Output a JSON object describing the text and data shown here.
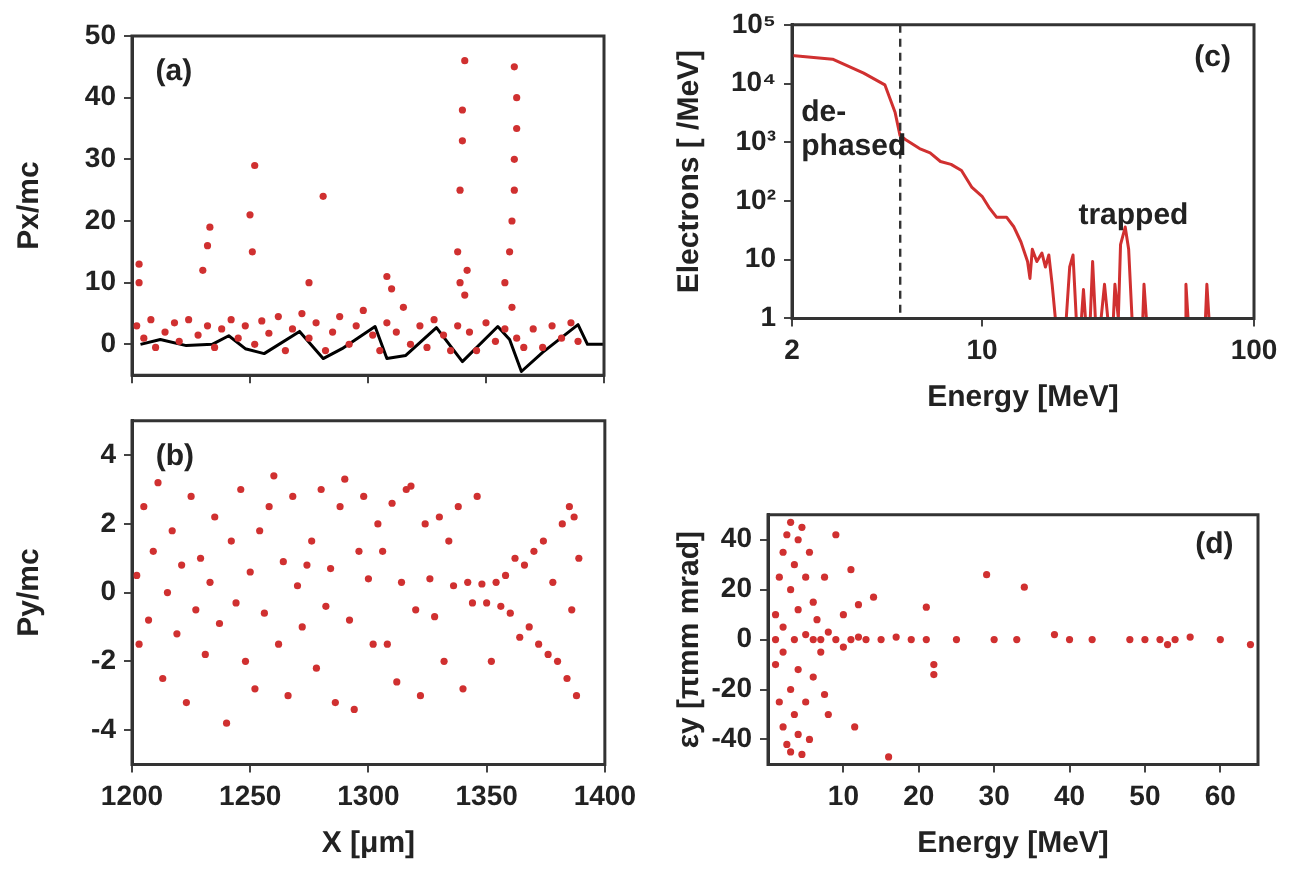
{
  "chart_data": [
    {
      "type": "scatter",
      "ylabel": "Px/mc",
      "xlim": [
        1200,
        1400
      ],
      "xticks": [
        1200,
        1250,
        1300,
        1350,
        1400
      ],
      "ylim": [
        -5,
        50
      ],
      "yticks": [
        0,
        10,
        20,
        30,
        40,
        50
      ],
      "tick_labels": "y",
      "annotations": [
        "(a)"
      ],
      "series": [
        {
          "type": "scatter",
          "color": "#d03030",
          "x": [
            1202,
            1205,
            1208,
            1210,
            1214,
            1218,
            1220,
            1224,
            1228,
            1232,
            1235,
            1238,
            1242,
            1245,
            1248,
            1252,
            1255,
            1258,
            1262,
            1265,
            1268,
            1272,
            1275,
            1278,
            1282,
            1285,
            1288,
            1292,
            1295,
            1298,
            1302,
            1305,
            1308,
            1312,
            1315,
            1318,
            1322,
            1325,
            1328,
            1332,
            1335,
            1338,
            1341,
            1343,
            1346,
            1350,
            1354,
            1358,
            1361,
            1363,
            1366,
            1370,
            1374,
            1378,
            1382,
            1386,
            1389,
            1203,
            1203,
            1230,
            1233,
            1232,
            1252,
            1250,
            1251,
            1281,
            1275,
            1310,
            1308,
            1338,
            1339,
            1340,
            1340,
            1341,
            1342,
            1339,
            1361,
            1362,
            1362,
            1363,
            1363,
            1362,
            1360,
            1358
          ],
          "values": [
            3,
            1,
            4,
            -0.5,
            2,
            3.5,
            0.5,
            4,
            1.5,
            3,
            -0.5,
            2.5,
            4,
            1,
            3,
            0,
            3.8,
            1.8,
            4.5,
            -1,
            2.5,
            5,
            1,
            3.5,
            -1,
            2,
            4.5,
            0,
            3,
            5.5,
            1.5,
            -1,
            3.5,
            2,
            6,
            0,
            3,
            -0.5,
            4,
            1.5,
            -1,
            3,
            8,
            2,
            -1,
            3.5,
            0.5,
            2.5,
            6,
            1,
            -0.5,
            2.5,
            -0.5,
            3,
            1,
            3.5,
            0.5,
            13,
            10,
            12,
            19,
            16,
            29,
            21,
            15,
            24,
            10,
            9,
            11,
            15,
            25,
            33,
            38,
            46,
            12,
            10,
            20,
            25,
            30,
            35,
            40,
            45,
            15,
            10
          ]
        },
        {
          "type": "line",
          "color": "#000000",
          "x": [
            1203.6,
            1212,
            1223,
            1234,
            1241,
            1248,
            1256,
            1271,
            1281,
            1289,
            1303,
            1308,
            1316,
            1329,
            1340,
            1355,
            1360,
            1365,
            1374,
            1389,
            1393,
            1400
          ],
          "values": [
            0,
            0.8,
            -0.2,
            0,
            1.4,
            -0.7,
            -1.5,
            2.1,
            -2.3,
            -0.7,
            2.9,
            -2.3,
            -1.8,
            2.7,
            -2.8,
            2.9,
            0.8,
            -4.4,
            -1.3,
            3.2,
            0,
            0
          ]
        }
      ]
    },
    {
      "type": "scatter",
      "ylabel": "Py/mc",
      "xlabel": "X [μm]",
      "xlim": [
        1200,
        1400
      ],
      "xticks": [
        1200,
        1250,
        1300,
        1350,
        1400
      ],
      "ylim": [
        -5,
        5
      ],
      "yticks": [
        -4,
        -2,
        0,
        2,
        4
      ],
      "annotations": [
        "(b)"
      ],
      "series": [
        {
          "type": "scatter",
          "color": "#d03030",
          "x": [
            1202,
            1203,
            1205,
            1207,
            1209,
            1211,
            1213,
            1215,
            1217,
            1219,
            1221,
            1223,
            1225,
            1227,
            1229,
            1231,
            1233,
            1235,
            1237,
            1240,
            1242,
            1244,
            1246,
            1248,
            1250,
            1252,
            1254,
            1256,
            1258,
            1260,
            1262,
            1264,
            1266,
            1268,
            1270,
            1272,
            1274,
            1276,
            1278,
            1280,
            1282,
            1284,
            1286,
            1288,
            1290,
            1292,
            1294,
            1296,
            1298,
            1300,
            1302,
            1304,
            1306,
            1308,
            1310,
            1312,
            1314,
            1316,
            1318,
            1320,
            1322,
            1324,
            1326,
            1328,
            1330,
            1332,
            1334,
            1336,
            1338,
            1340,
            1342,
            1344,
            1346,
            1348,
            1350,
            1352,
            1354,
            1356,
            1358,
            1360,
            1362,
            1364,
            1366,
            1368,
            1370,
            1372,
            1374,
            1376,
            1378,
            1380,
            1382,
            1384,
            1385,
            1386,
            1387,
            1388,
            1389
          ],
          "values": [
            0.5,
            -1.5,
            2.5,
            -0.8,
            1.2,
            3.2,
            -2.5,
            0,
            1.8,
            -1.2,
            0.8,
            -3.2,
            2.8,
            -0.5,
            1,
            -1.8,
            0.3,
            2.2,
            -0.9,
            -3.8,
            1.5,
            -0.3,
            3,
            -2,
            0.6,
            -2.8,
            1.8,
            -0.6,
            2.5,
            3.4,
            -1.5,
            0.9,
            -3,
            2.8,
            0.2,
            -1,
            0.8,
            1.5,
            -2.2,
            3,
            -0.4,
            0.7,
            -3.2,
            2.5,
            3.3,
            -0.8,
            -3.4,
            1.2,
            2.8,
            0.4,
            -1.5,
            2,
            1.2,
            -1.5,
            2.6,
            -2.6,
            0.3,
            3,
            3.1,
            -0.5,
            -3,
            2,
            0.4,
            -0.7,
            2.2,
            -2,
            1.5,
            0.2,
            2.5,
            -2.8,
            0.3,
            -0.3,
            2.8,
            0.25,
            -0.3,
            -2,
            0.3,
            -0.4,
            0.5,
            -0.6,
            1,
            -1.3,
            0.8,
            -1,
            1.2,
            -1.5,
            1.5,
            -1.8,
            0.3,
            -2,
            2,
            -2.5,
            2.5,
            -0.5,
            2.2,
            -3,
            1
          ]
        }
      ]
    },
    {
      "type": "line",
      "ylabel": "Electrons [ /MeV]",
      "xlabel": "Energy [MeV]",
      "log": "xy",
      "xlim": [
        2,
        100
      ],
      "xticks": [
        2,
        10,
        100
      ],
      "ylim": [
        1,
        100000
      ],
      "yticks": [
        1,
        10,
        {
          "value": 100,
          "label": "10²"
        },
        {
          "value": 1000,
          "label": "10³"
        },
        {
          "value": 10000,
          "label": "10⁴"
        },
        {
          "value": 100000,
          "label": "10⁵"
        }
      ],
      "ref_lines": [
        {
          "axis": "x",
          "value": 5,
          "color": "#333333",
          "line_style": "dashed"
        }
      ],
      "annotations": [
        "(c)",
        "de-\nphased",
        "trapped"
      ],
      "series": [
        {
          "color": "#d03030",
          "x": [
            2,
            2.82,
            3.67,
            4.39,
            4.79,
            4.99,
            5.24,
            5.89,
            6.44,
            7.03,
            7.69,
            8.4,
            9.18,
            10,
            10.6,
            11.3,
            12.3,
            13.1,
            13.9,
            14.7,
            15,
            15.3,
            15.9,
            16.6,
            17.1,
            17.6,
            18.1,
            18.6,
            20.4,
            21,
            21.6,
            22.2,
            23.2,
            23.6,
            24,
            25,
            25.5,
            26.1,
            27.4,
            28.2,
            29,
            30.4,
            30.8,
            31.7,
            32.3,
            33.6,
            34.6,
            35.6,
            39,
            39.4,
            40.2,
            55.6,
            56.2,
            57.2,
            66.3,
            67.1,
            68.3
          ],
          "values": [
            30000,
            26000,
            15000,
            9500,
            3200,
            1300,
            1100,
            780,
            660,
            470,
            420,
            330,
            170,
            120,
            78,
            53,
            53,
            36,
            20,
            9.3,
            4.8,
            15,
            9.3,
            13,
            7.5,
            12,
            3.8,
            1,
            1,
            7.5,
            12,
            1,
            1,
            3.1,
            1,
            1,
            9.3,
            1,
            1,
            3.8,
            1,
            1,
            3.8,
            1,
            18,
            36,
            15,
            1,
            1,
            3.8,
            1,
            1,
            3.8,
            1,
            1,
            3.8,
            1
          ]
        }
      ]
    },
    {
      "type": "scatter",
      "ylabel": "εy [πmm mrad]",
      "xlabel": "Energy [MeV]",
      "xlim": [
        0,
        65
      ],
      "xticks": [
        10,
        20,
        30,
        40,
        50,
        60
      ],
      "ylim": [
        -50,
        50
      ],
      "yticks": [
        -40,
        -20,
        0,
        20,
        40
      ],
      "annotations": [
        "(d)"
      ],
      "series": [
        {
          "type": "scatter",
          "color": "#d03030",
          "x": [
            1,
            1,
            1,
            1.5,
            1.5,
            2,
            2,
            2,
            2,
            2.5,
            2.5,
            3,
            3,
            3,
            3,
            3.5,
            3.5,
            3.5,
            4,
            4,
            4,
            4,
            4.5,
            4.5,
            5,
            5,
            5,
            5.5,
            5.5,
            6,
            6,
            6,
            6.5,
            7,
            7,
            7.5,
            7.5,
            8,
            8,
            9,
            9,
            10,
            10,
            11,
            11,
            11.5,
            12,
            12,
            13,
            14,
            15,
            16,
            17,
            19,
            21,
            21,
            22,
            22,
            25,
            29,
            30,
            33,
            34,
            38,
            40,
            43,
            48,
            50,
            52,
            53,
            54,
            56,
            60,
            64
          ],
          "values": [
            0,
            10,
            -10,
            25,
            -25,
            35,
            -35,
            5,
            -5,
            42,
            -42,
            20,
            -20,
            47,
            -45,
            0,
            30,
            -30,
            40,
            -38,
            12,
            -12,
            45,
            -46,
            25,
            -25,
            2,
            35,
            -40,
            0,
            15,
            -15,
            8,
            0,
            -5,
            25,
            -22,
            3,
            -30,
            42,
            0,
            10,
            -3,
            28,
            0,
            -35,
            14,
            1,
            0,
            17,
            0,
            -47,
            1,
            0,
            13,
            0,
            -10,
            -14,
            0,
            26,
            0,
            0,
            21,
            2,
            0,
            0,
            0,
            0,
            0,
            -2,
            0,
            1,
            0,
            -2
          ]
        }
      ]
    }
  ]
}
